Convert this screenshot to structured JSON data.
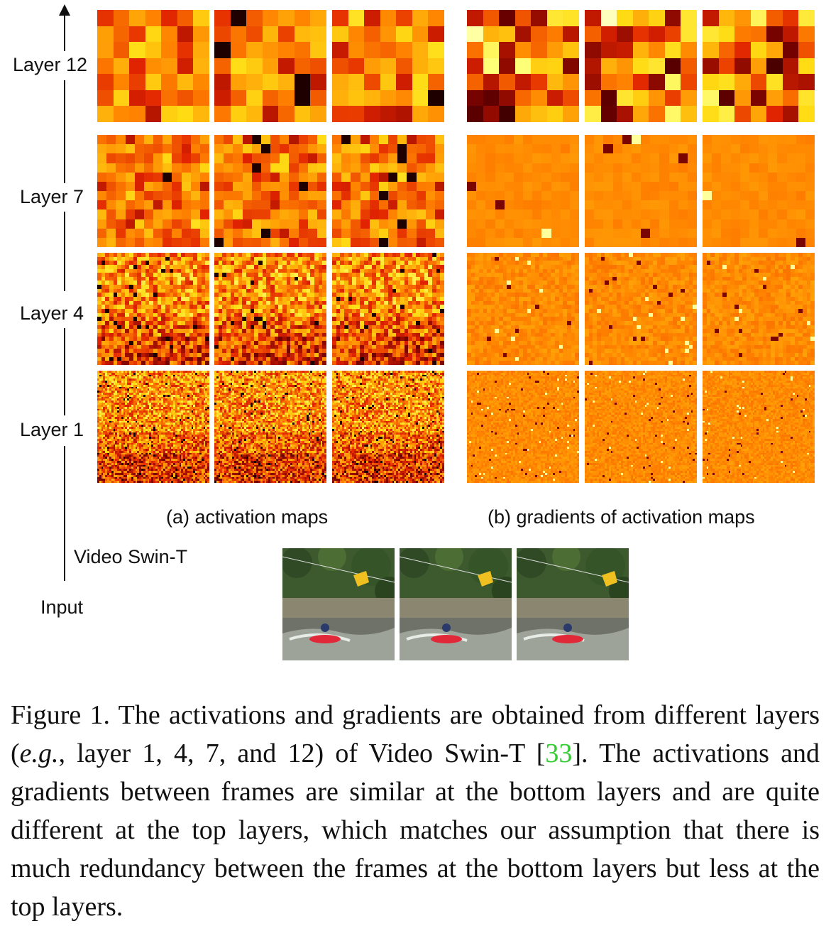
{
  "layers": [
    {
      "label": "Layer 12"
    },
    {
      "label": "Layer 7"
    },
    {
      "label": "Layer 4"
    },
    {
      "label": "Layer 1"
    }
  ],
  "axis": {
    "bottom_label": "Video Swin-T",
    "input_label": "Input"
  },
  "subcaptions": {
    "a": "(a) activation maps",
    "b": "(b) gradients of activation maps"
  },
  "caption": {
    "part1": "Figure 1. The activations and gradients are obtained from different layers (",
    "italic": "e.g.",
    "part2": ", layer 1, 4, 7, and 12) of Video Swin-T [",
    "ref": "33",
    "part3": "]. The activations and gradients between frames are similar at the bottom layers and are quite different at the top layers, which matches our assumption that there is much redundancy between the frames at the bottom layers but less at the top layers."
  },
  "colors": {
    "heat_dark": "#000000",
    "heat_red": "#e02000",
    "heat_orange": "#ff8000",
    "heat_yellow": "#ffff40",
    "heat_pale": "#ffffc0",
    "link_green": "#33cc33"
  },
  "icons": {
    "axis_arrow": "up-arrow"
  }
}
